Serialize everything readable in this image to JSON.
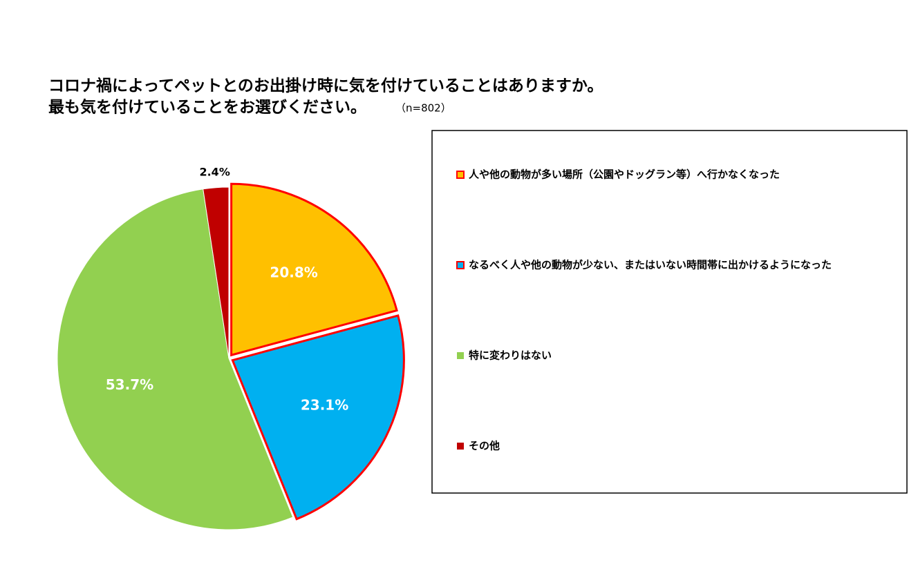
{
  "chart_data": {
    "type": "pie",
    "title": [
      "コロナ禍によってペットとのお出掛け時に気を付けていることはありますか。",
      "最も気を付けていることをお選びください。"
    ],
    "subtitle": "（n=802）",
    "categories": [
      "人や他の動物が多い場所（公園やドッグラン等）へ行かなくなった",
      "なるべく人や他の動物が少ない、またはいない時間帯に出かけるようになった",
      "特に変わりはない",
      "その他"
    ],
    "values": [
      20.8,
      23.1,
      53.7,
      2.4
    ],
    "value_labels": [
      "20.8%",
      "23.1%",
      "53.7%",
      "2.4%"
    ],
    "colors": [
      "#ffc000",
      "#00b0f0",
      "#92d050",
      "#c00000"
    ],
    "exploded": [
      true,
      true,
      false,
      false
    ],
    "legend": "right"
  }
}
